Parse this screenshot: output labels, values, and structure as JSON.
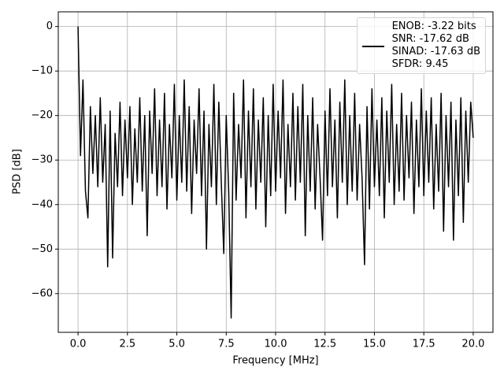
{
  "chart_data": {
    "type": "line",
    "xlabel": "Frequency [MHz]",
    "ylabel": "PSD [dB]",
    "x": [
      0,
      0.125,
      0.25,
      0.375,
      0.5,
      0.625,
      0.75,
      0.875,
      1,
      1.125,
      1.25,
      1.375,
      1.5,
      1.625,
      1.75,
      1.875,
      2,
      2.125,
      2.25,
      2.375,
      2.5,
      2.625,
      2.75,
      2.875,
      3,
      3.125,
      3.25,
      3.375,
      3.5,
      3.625,
      3.75,
      3.875,
      4,
      4.125,
      4.25,
      4.375,
      4.5,
      4.625,
      4.75,
      4.875,
      5,
      5.125,
      5.25,
      5.375,
      5.5,
      5.625,
      5.75,
      5.875,
      6,
      6.125,
      6.25,
      6.375,
      6.5,
      6.625,
      6.75,
      6.875,
      7,
      7.125,
      7.25,
      7.375,
      7.5,
      7.625,
      7.75,
      7.875,
      8,
      8.125,
      8.25,
      8.375,
      8.5,
      8.625,
      8.75,
      8.875,
      9,
      9.125,
      9.25,
      9.375,
      9.5,
      9.625,
      9.75,
      9.875,
      10,
      10.125,
      10.25,
      10.375,
      10.5,
      10.625,
      10.75,
      10.875,
      11,
      11.125,
      11.25,
      11.375,
      11.5,
      11.625,
      11.75,
      11.875,
      12,
      12.125,
      12.25,
      12.375,
      12.5,
      12.625,
      12.75,
      12.875,
      13,
      13.125,
      13.25,
      13.375,
      13.5,
      13.625,
      13.75,
      13.875,
      14,
      14.125,
      14.25,
      14.375,
      14.5,
      14.625,
      14.75,
      14.875,
      15,
      15.125,
      15.25,
      15.375,
      15.5,
      15.625,
      15.75,
      15.875,
      16,
      16.125,
      16.25,
      16.375,
      16.5,
      16.625,
      16.75,
      16.875,
      17,
      17.125,
      17.25,
      17.375,
      17.5,
      17.625,
      17.75,
      17.875,
      18,
      18.125,
      18.25,
      18.375,
      18.5,
      18.625,
      18.75,
      18.875,
      19,
      19.125,
      19.25,
      19.375,
      19.5,
      19.625,
      19.75,
      19.875,
      20
    ],
    "series": [
      {
        "name": "ENOB: -3.22 bits\nSNR: -17.62 dB\nSINAD: -17.63 dB\nSFDR: 9.45",
        "color": "#000000",
        "values": [
          0,
          -29,
          -12,
          -37,
          -43,
          -18,
          -33,
          -20,
          -36,
          -16,
          -35,
          -22,
          -54,
          -19,
          -52,
          -24,
          -36,
          -17,
          -38,
          -21,
          -34,
          -18,
          -40,
          -23,
          -35,
          -16,
          -37,
          -20,
          -47,
          -19,
          -33,
          -14,
          -38,
          -21,
          -36,
          -15,
          -41,
          -22,
          -34,
          -13,
          -39,
          -20,
          -35,
          -12,
          -37,
          -18,
          -42,
          -21,
          -33,
          -14,
          -38,
          -19,
          -50,
          -22,
          -36,
          -13,
          -40,
          -17,
          -35,
          -51,
          -20,
          -37,
          -65.5,
          -15,
          -39,
          -22,
          -34,
          -12,
          -43,
          -19,
          -36,
          -14,
          -41,
          -21,
          -35,
          -16,
          -45,
          -20,
          -38,
          -13,
          -37,
          -19,
          -34,
          -12,
          -42,
          -22,
          -36,
          -15,
          -39,
          -18,
          -35,
          -13,
          -47,
          -20,
          -37,
          -16,
          -41,
          -22,
          -34,
          -48,
          -19,
          -38,
          -14,
          -36,
          -21,
          -43,
          -17,
          -35,
          -12,
          -40,
          -20,
          -37,
          -15,
          -39,
          -22,
          -34,
          -53.5,
          -18,
          -41,
          -14,
          -36,
          -21,
          -38,
          -16,
          -43,
          -19,
          -35,
          -13,
          -40,
          -22,
          -37,
          -15,
          -39,
          -20,
          -34,
          -17,
          -42,
          -21,
          -36,
          -14,
          -38,
          -19,
          -35,
          -16,
          -41,
          -22,
          -37,
          -15,
          -46,
          -20,
          -36,
          -17,
          -48,
          -21,
          -38,
          -16,
          -44,
          -19,
          -35,
          -17,
          -25
        ]
      }
    ],
    "xlim": [
      -1,
      21
    ],
    "ylim": [
      -68.7,
      3.3
    ],
    "xticks": [
      {
        "value": 0,
        "label": "0.0"
      },
      {
        "value": 2.5,
        "label": "2.5"
      },
      {
        "value": 5,
        "label": "5.0"
      },
      {
        "value": 7.5,
        "label": "7.5"
      },
      {
        "value": 10,
        "label": "10.0"
      },
      {
        "value": 12.5,
        "label": "12.5"
      },
      {
        "value": 15,
        "label": "15.0"
      },
      {
        "value": 17.5,
        "label": "17.5"
      },
      {
        "value": 20,
        "label": "20.0"
      }
    ],
    "yticks": [
      {
        "value": -60,
        "label": "−60"
      },
      {
        "value": -50,
        "label": "−50"
      },
      {
        "value": -40,
        "label": "−40"
      },
      {
        "value": -30,
        "label": "−30"
      },
      {
        "value": -20,
        "label": "−20"
      },
      {
        "value": -10,
        "label": "−10"
      },
      {
        "value": 0,
        "label": "0"
      }
    ],
    "grid": true,
    "legend": "upper right"
  }
}
